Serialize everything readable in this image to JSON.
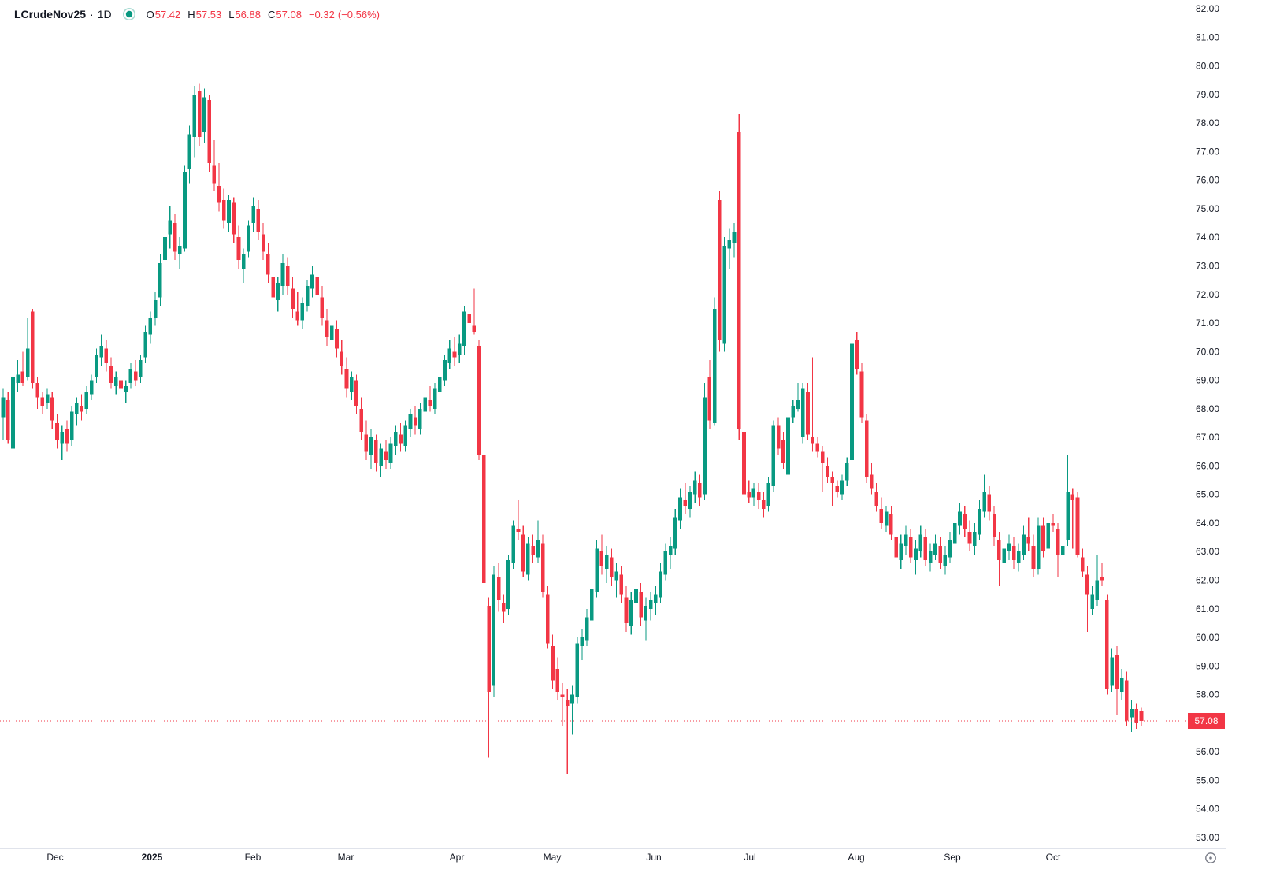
{
  "header": {
    "symbol": "LCrudeNov25",
    "separator": "·",
    "timeframe": "1D",
    "ohlc": {
      "open_label": "O",
      "open": "57.42",
      "high_label": "H",
      "high": "57.53",
      "low_label": "L",
      "low": "56.88",
      "close_label": "C",
      "close": "57.08",
      "change": "−0.32",
      "change_pct": "(−0.56%)"
    }
  },
  "colors": {
    "up": "#089981",
    "down": "#F23645",
    "text": "#131722",
    "axis_border": "#E0E3EB",
    "icon_gray": "#787B86",
    "last_price_bg": "#F23645",
    "last_price_text": "#FFFFFF",
    "status_dot": "#089981"
  },
  "price_axis": {
    "max": 82,
    "min": 53,
    "step": 1,
    "decimals": 2,
    "last_price_label": "57.08"
  },
  "time_axis": {
    "ticks": [
      [
        "Dec",
        70
      ],
      [
        "2025",
        193,
        "bold"
      ],
      [
        "Feb",
        321
      ],
      [
        "Mar",
        439
      ],
      [
        "Apr",
        580
      ],
      [
        "May",
        701
      ],
      [
        "Jun",
        830
      ],
      [
        "Jul",
        952
      ],
      [
        "Aug",
        1087
      ],
      [
        "Sep",
        1209
      ],
      [
        "Oct",
        1337
      ]
    ]
  },
  "chart_data": {
    "type": "candlestick",
    "symbol": "LCrudeNov25",
    "interval": "1D",
    "title": "LCrudeNov25 · 1D candlestick chart, Nov 2024 – Oct 2025",
    "ylim": [
      53,
      82
    ],
    "grid": false,
    "last_price": 57.08,
    "last_candle_ohlc": {
      "open": 57.42,
      "high": 57.53,
      "low": 56.88,
      "close": 57.08
    },
    "candles": [
      [
        67.7,
        68.7,
        66.9,
        68.4
      ],
      [
        68.3,
        68.6,
        66.8,
        66.9
      ],
      [
        66.6,
        69.3,
        66.4,
        69.1
      ],
      [
        68.9,
        69.7,
        68.6,
        69.2
      ],
      [
        69.3,
        70.0,
        68.8,
        68.9
      ],
      [
        69.1,
        71.2,
        69.0,
        70.1
      ],
      [
        71.4,
        71.5,
        68.7,
        68.9
      ],
      [
        68.9,
        69.1,
        68.0,
        68.4
      ],
      [
        68.4,
        68.6,
        67.8,
        68.1
      ],
      [
        68.2,
        68.7,
        68.0,
        68.5
      ],
      [
        68.4,
        68.6,
        67.3,
        67.6
      ],
      [
        67.5,
        67.8,
        66.6,
        66.9
      ],
      [
        66.8,
        67.4,
        66.2,
        67.2
      ],
      [
        67.3,
        67.6,
        66.5,
        66.8
      ],
      [
        66.9,
        68.1,
        66.7,
        67.9
      ],
      [
        67.8,
        68.4,
        67.4,
        68.2
      ],
      [
        68.1,
        68.5,
        67.6,
        67.9
      ],
      [
        68.0,
        68.8,
        67.8,
        68.6
      ],
      [
        68.5,
        69.2,
        68.3,
        69.0
      ],
      [
        69.1,
        70.1,
        68.9,
        69.9
      ],
      [
        69.8,
        70.6,
        69.5,
        70.2
      ],
      [
        70.1,
        70.4,
        69.3,
        69.6
      ],
      [
        69.5,
        69.8,
        68.7,
        68.9
      ],
      [
        68.8,
        69.3,
        68.5,
        69.1
      ],
      [
        69.0,
        69.4,
        68.4,
        68.7
      ],
      [
        68.6,
        69.0,
        68.2,
        68.8
      ],
      [
        68.9,
        69.6,
        68.7,
        69.4
      ],
      [
        69.3,
        69.7,
        68.8,
        69.0
      ],
      [
        69.1,
        69.9,
        68.9,
        69.7
      ],
      [
        69.8,
        70.9,
        69.6,
        70.7
      ],
      [
        70.6,
        71.4,
        70.3,
        71.2
      ],
      [
        71.2,
        72.1,
        70.9,
        71.8
      ],
      [
        71.9,
        73.4,
        71.6,
        73.1
      ],
      [
        73.2,
        74.3,
        72.8,
        74.0
      ],
      [
        74.1,
        75.1,
        73.6,
        74.6
      ],
      [
        74.5,
        74.8,
        73.2,
        73.5
      ],
      [
        73.4,
        74.0,
        72.9,
        73.7
      ],
      [
        73.6,
        76.5,
        73.5,
        76.3
      ],
      [
        76.4,
        77.9,
        75.9,
        77.6
      ],
      [
        77.5,
        79.3,
        76.8,
        79.0
      ],
      [
        79.1,
        79.4,
        77.2,
        77.5
      ],
      [
        77.7,
        79.2,
        77.3,
        78.9
      ],
      [
        78.8,
        79.0,
        76.3,
        76.6
      ],
      [
        76.5,
        77.4,
        75.6,
        75.9
      ],
      [
        75.8,
        76.6,
        74.9,
        75.2
      ],
      [
        75.3,
        75.7,
        74.3,
        74.6
      ],
      [
        74.5,
        75.5,
        74.2,
        75.3
      ],
      [
        75.2,
        75.4,
        73.8,
        74.1
      ],
      [
        74.0,
        74.4,
        72.9,
        73.2
      ],
      [
        72.9,
        73.6,
        72.4,
        73.4
      ],
      [
        73.5,
        74.6,
        73.3,
        74.4
      ],
      [
        74.5,
        75.4,
        74.2,
        75.1
      ],
      [
        75.0,
        75.3,
        73.9,
        74.2
      ],
      [
        74.1,
        74.5,
        73.2,
        73.5
      ],
      [
        73.4,
        73.8,
        72.4,
        72.7
      ],
      [
        72.6,
        73.1,
        71.6,
        71.9
      ],
      [
        71.8,
        72.6,
        71.4,
        72.4
      ],
      [
        72.3,
        73.4,
        72.0,
        73.1
      ],
      [
        73.0,
        73.3,
        72.0,
        72.3
      ],
      [
        72.2,
        72.6,
        71.2,
        71.5
      ],
      [
        71.4,
        72.1,
        70.9,
        71.1
      ],
      [
        71.1,
        71.9,
        70.8,
        71.7
      ],
      [
        71.6,
        72.5,
        71.4,
        72.3
      ],
      [
        72.2,
        73.0,
        71.9,
        72.7
      ],
      [
        72.6,
        72.9,
        71.7,
        72.0
      ],
      [
        71.9,
        72.3,
        70.9,
        71.2
      ],
      [
        71.1,
        71.5,
        70.2,
        70.5
      ],
      [
        70.4,
        71.2,
        70.1,
        70.9
      ],
      [
        70.8,
        71.1,
        69.8,
        70.1
      ],
      [
        70.0,
        70.4,
        69.2,
        69.5
      ],
      [
        69.4,
        69.8,
        68.4,
        68.7
      ],
      [
        68.6,
        69.3,
        68.3,
        69.1
      ],
      [
        69.0,
        69.2,
        67.8,
        68.1
      ],
      [
        68.0,
        68.4,
        66.9,
        67.2
      ],
      [
        67.1,
        67.6,
        66.2,
        66.5
      ],
      [
        66.4,
        67.3,
        65.9,
        67.0
      ],
      [
        66.9,
        67.1,
        65.8,
        66.1
      ],
      [
        66.0,
        66.8,
        65.6,
        66.6
      ],
      [
        66.5,
        66.9,
        65.9,
        66.2
      ],
      [
        66.1,
        67.0,
        65.9,
        66.8
      ],
      [
        66.7,
        67.4,
        66.4,
        67.2
      ],
      [
        67.1,
        67.5,
        66.5,
        66.8
      ],
      [
        66.7,
        67.6,
        66.5,
        67.4
      ],
      [
        67.3,
        68.0,
        67.0,
        67.8
      ],
      [
        67.7,
        68.1,
        67.1,
        67.4
      ],
      [
        67.3,
        68.2,
        67.1,
        68.0
      ],
      [
        67.9,
        68.6,
        67.7,
        68.4
      ],
      [
        68.3,
        68.8,
        67.9,
        68.1
      ],
      [
        68.0,
        68.9,
        67.8,
        68.7
      ],
      [
        68.6,
        69.3,
        68.4,
        69.1
      ],
      [
        69.0,
        69.9,
        68.8,
        69.7
      ],
      [
        69.6,
        70.4,
        69.4,
        70.1
      ],
      [
        70.0,
        70.5,
        69.5,
        69.8
      ],
      [
        69.9,
        70.6,
        69.6,
        70.3
      ],
      [
        70.2,
        71.6,
        69.9,
        71.4
      ],
      [
        71.3,
        72.3,
        70.8,
        71.0
      ],
      [
        70.9,
        72.2,
        70.6,
        70.7
      ],
      [
        70.2,
        70.4,
        66.2,
        66.4
      ],
      [
        66.4,
        66.6,
        61.4,
        61.9
      ],
      [
        61.1,
        61.4,
        55.8,
        58.1
      ],
      [
        58.3,
        62.5,
        57.9,
        62.2
      ],
      [
        62.1,
        62.6,
        60.9,
        61.3
      ],
      [
        61.2,
        61.5,
        60.5,
        60.9
      ],
      [
        61.0,
        62.9,
        60.8,
        62.7
      ],
      [
        62.6,
        64.1,
        62.4,
        63.9
      ],
      [
        63.8,
        64.8,
        63.4,
        63.7
      ],
      [
        63.6,
        63.9,
        62.1,
        62.3
      ],
      [
        62.2,
        63.5,
        62.0,
        63.3
      ],
      [
        63.2,
        63.6,
        62.6,
        62.9
      ],
      [
        62.8,
        64.1,
        62.6,
        63.4
      ],
      [
        63.3,
        63.6,
        61.4,
        61.6
      ],
      [
        61.5,
        61.8,
        59.6,
        59.8
      ],
      [
        59.7,
        60.1,
        58.2,
        58.5
      ],
      [
        58.9,
        59.3,
        57.8,
        58.1
      ],
      [
        58.0,
        58.4,
        56.9,
        57.9
      ],
      [
        57.8,
        58.2,
        55.2,
        57.6
      ],
      [
        57.7,
        58.3,
        56.6,
        58.0
      ],
      [
        57.9,
        60.0,
        57.7,
        59.8
      ],
      [
        59.7,
        60.3,
        59.2,
        60.0
      ],
      [
        59.9,
        61.0,
        59.7,
        60.7
      ],
      [
        60.6,
        62.0,
        60.4,
        61.7
      ],
      [
        61.6,
        63.4,
        61.4,
        63.1
      ],
      [
        63.0,
        63.6,
        62.2,
        62.5
      ],
      [
        62.4,
        63.2,
        61.9,
        62.9
      ],
      [
        62.8,
        63.1,
        61.8,
        62.1
      ],
      [
        62.0,
        62.6,
        61.4,
        62.3
      ],
      [
        62.2,
        62.5,
        61.2,
        61.5
      ],
      [
        61.4,
        61.8,
        60.2,
        60.5
      ],
      [
        60.4,
        61.6,
        60.1,
        61.3
      ],
      [
        61.2,
        62.0,
        60.9,
        61.7
      ],
      [
        61.6,
        61.9,
        60.4,
        60.7
      ],
      [
        60.6,
        61.4,
        59.9,
        61.1
      ],
      [
        61.0,
        61.6,
        60.6,
        61.3
      ],
      [
        61.2,
        61.8,
        60.8,
        61.5
      ],
      [
        61.4,
        62.6,
        61.2,
        62.3
      ],
      [
        62.2,
        63.3,
        62.0,
        63.0
      ],
      [
        62.9,
        63.5,
        62.4,
        63.2
      ],
      [
        63.1,
        64.5,
        62.9,
        64.2
      ],
      [
        64.1,
        65.2,
        63.8,
        64.9
      ],
      [
        64.8,
        65.4,
        64.3,
        64.6
      ],
      [
        64.5,
        65.3,
        64.2,
        65.1
      ],
      [
        65.0,
        65.8,
        64.7,
        65.5
      ],
      [
        65.4,
        65.7,
        64.6,
        64.9
      ],
      [
        65.0,
        68.9,
        64.8,
        68.4
      ],
      [
        69.1,
        69.7,
        67.3,
        67.6
      ],
      [
        67.5,
        71.9,
        67.4,
        71.5
      ],
      [
        75.3,
        75.6,
        70.0,
        70.4
      ],
      [
        70.3,
        74.0,
        70.0,
        73.7
      ],
      [
        73.6,
        74.3,
        72.9,
        73.9
      ],
      [
        73.8,
        74.5,
        73.3,
        74.2
      ],
      [
        77.7,
        78.3,
        66.9,
        67.3
      ],
      [
        67.2,
        67.5,
        64.0,
        65.0
      ],
      [
        65.1,
        65.5,
        64.7,
        64.9
      ],
      [
        64.9,
        65.4,
        64.6,
        65.2
      ],
      [
        65.1,
        65.4,
        64.5,
        64.8
      ],
      [
        64.8,
        65.1,
        64.2,
        64.5
      ],
      [
        64.6,
        65.6,
        64.4,
        65.4
      ],
      [
        65.3,
        67.6,
        65.1,
        67.4
      ],
      [
        67.4,
        67.7,
        66.4,
        66.6
      ],
      [
        66.9,
        67.2,
        65.9,
        66.1
      ],
      [
        65.7,
        67.9,
        65.5,
        67.7
      ],
      [
        67.7,
        68.3,
        67.5,
        68.1
      ],
      [
        68.0,
        68.9,
        67.9,
        68.3
      ],
      [
        67.0,
        68.9,
        66.8,
        68.7
      ],
      [
        68.6,
        68.9,
        66.9,
        67.1
      ],
      [
        67.0,
        69.8,
        66.5,
        66.8
      ],
      [
        66.8,
        67.0,
        66.3,
        66.5
      ],
      [
        66.5,
        66.7,
        65.1,
        66.1
      ],
      [
        66.0,
        66.3,
        65.4,
        65.6
      ],
      [
        65.6,
        65.8,
        64.6,
        65.4
      ],
      [
        65.3,
        65.5,
        64.9,
        65.1
      ],
      [
        65.0,
        65.7,
        64.8,
        65.5
      ],
      [
        65.5,
        66.3,
        65.3,
        66.1
      ],
      [
        66.2,
        70.6,
        66.0,
        70.3
      ],
      [
        70.4,
        70.7,
        69.2,
        69.4
      ],
      [
        69.3,
        69.6,
        67.5,
        67.7
      ],
      [
        67.6,
        67.8,
        65.4,
        65.6
      ],
      [
        65.7,
        66.1,
        65.0,
        65.2
      ],
      [
        65.1,
        65.4,
        64.4,
        64.6
      ],
      [
        64.5,
        64.9,
        63.8,
        64.0
      ],
      [
        63.9,
        64.6,
        63.7,
        64.4
      ],
      [
        64.3,
        64.6,
        63.4,
        63.6
      ],
      [
        63.5,
        63.9,
        62.6,
        62.8
      ],
      [
        62.7,
        63.6,
        62.4,
        63.3
      ],
      [
        63.2,
        63.9,
        62.9,
        63.6
      ],
      [
        63.5,
        63.8,
        62.6,
        62.8
      ],
      [
        62.7,
        63.4,
        62.2,
        63.1
      ],
      [
        63.0,
        63.9,
        62.8,
        63.6
      ],
      [
        63.5,
        63.8,
        62.5,
        62.7
      ],
      [
        62.6,
        63.3,
        62.3,
        63.0
      ],
      [
        62.9,
        63.6,
        62.7,
        63.3
      ],
      [
        63.2,
        63.5,
        62.4,
        62.6
      ],
      [
        62.5,
        63.2,
        62.2,
        62.9
      ],
      [
        62.8,
        63.7,
        62.6,
        63.4
      ],
      [
        63.3,
        64.3,
        63.1,
        64.0
      ],
      [
        63.9,
        64.7,
        63.6,
        64.4
      ],
      [
        64.3,
        64.6,
        63.5,
        63.8
      ],
      [
        63.7,
        64.1,
        63.0,
        63.3
      ],
      [
        63.2,
        64.0,
        62.9,
        63.7
      ],
      [
        63.6,
        64.8,
        63.4,
        64.5
      ],
      [
        64.4,
        65.7,
        64.2,
        65.1
      ],
      [
        65.0,
        65.3,
        64.1,
        64.4
      ],
      [
        64.3,
        64.6,
        63.2,
        63.5
      ],
      [
        63.4,
        63.7,
        61.8,
        62.7
      ],
      [
        62.6,
        63.4,
        62.3,
        63.1
      ],
      [
        63.0,
        63.6,
        62.7,
        63.3
      ],
      [
        63.2,
        63.5,
        62.4,
        62.7
      ],
      [
        62.6,
        63.3,
        62.3,
        63.0
      ],
      [
        62.9,
        63.9,
        62.7,
        63.6
      ],
      [
        63.5,
        64.2,
        63.0,
        63.3
      ],
      [
        63.2,
        63.6,
        62.1,
        62.4
      ],
      [
        62.4,
        64.2,
        62.2,
        63.9
      ],
      [
        63.9,
        64.2,
        62.8,
        63.0
      ],
      [
        63.1,
        64.2,
        62.9,
        64.0
      ],
      [
        64.0,
        64.3,
        63.7,
        63.9
      ],
      [
        63.8,
        64.0,
        62.1,
        62.9
      ],
      [
        62.9,
        63.4,
        62.7,
        63.2
      ],
      [
        63.4,
        66.4,
        63.2,
        65.1
      ],
      [
        65.0,
        65.2,
        63.1,
        64.8
      ],
      [
        64.9,
        65.1,
        62.8,
        62.9
      ],
      [
        62.8,
        63.1,
        62.1,
        62.3
      ],
      [
        62.2,
        62.5,
        60.2,
        61.5
      ],
      [
        61.0,
        61.8,
        60.8,
        61.5
      ],
      [
        61.3,
        62.9,
        61.1,
        62.0
      ],
      [
        62.1,
        62.6,
        61.8,
        62.0
      ],
      [
        61.3,
        61.5,
        58.0,
        58.2
      ],
      [
        58.3,
        59.6,
        58.1,
        59.3
      ],
      [
        59.4,
        59.7,
        57.3,
        58.2
      ],
      [
        58.1,
        58.9,
        57.8,
        58.6
      ],
      [
        58.5,
        58.8,
        56.9,
        57.1
      ],
      [
        57.2,
        57.8,
        56.7,
        57.5
      ],
      [
        57.5,
        57.7,
        56.8,
        57.0
      ],
      [
        57.42,
        57.53,
        56.88,
        57.08
      ]
    ]
  }
}
